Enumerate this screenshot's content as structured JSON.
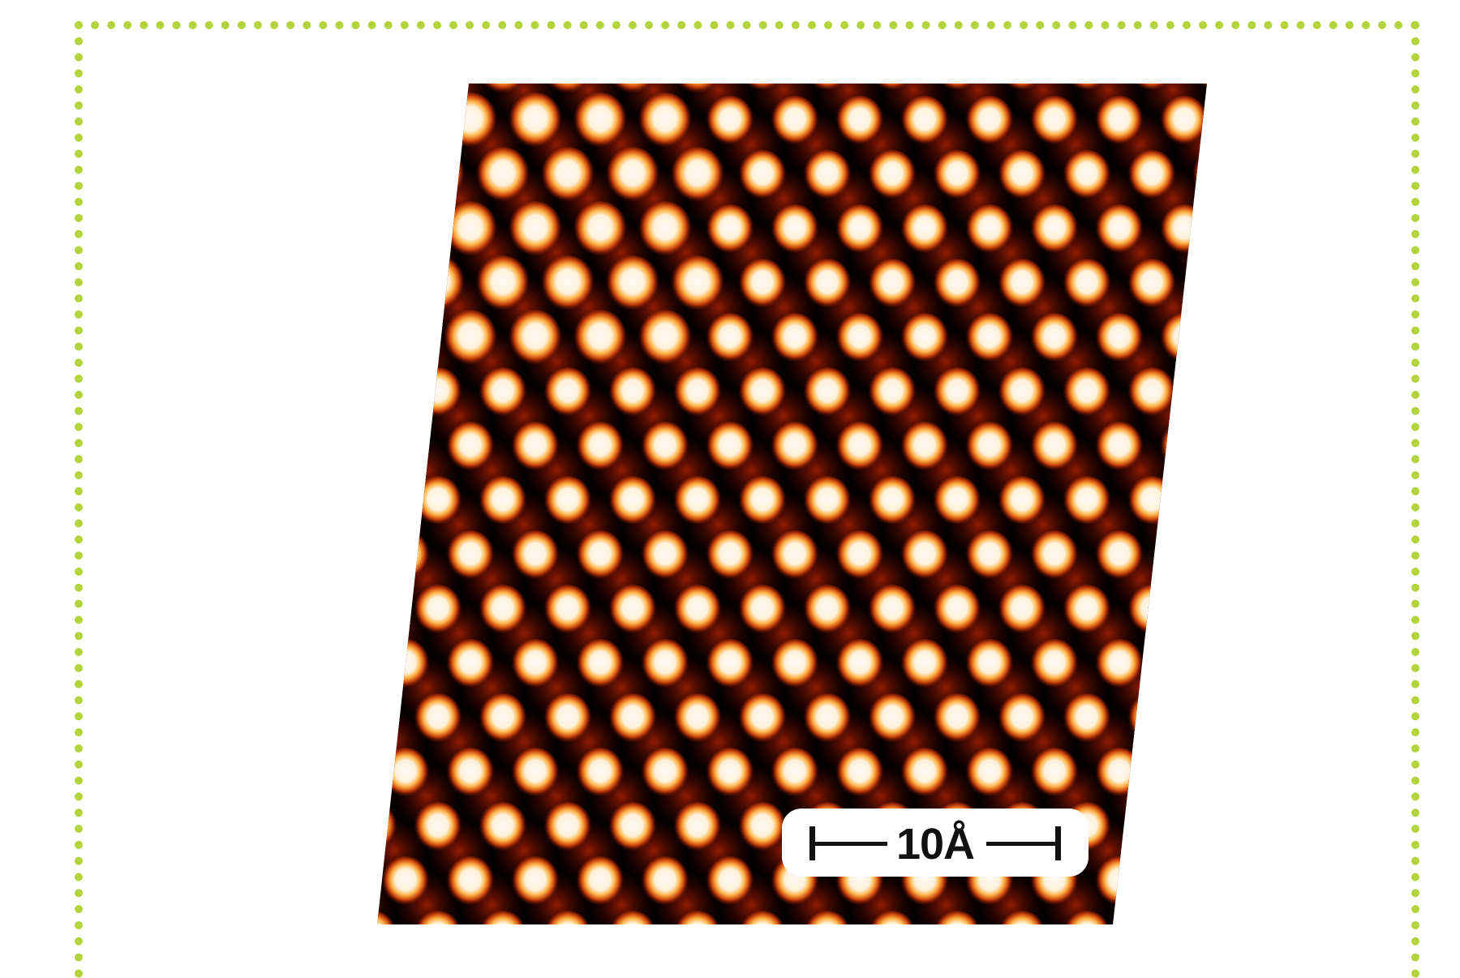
{
  "image": {
    "subject": "atomic-lattice-micrograph",
    "colormap": [
      "#000000",
      "#7a0a00",
      "#d0450a",
      "#ffb040",
      "#fff8ee"
    ],
    "frame_color": "#b5d33d"
  },
  "scale_bar": {
    "label": "10Å"
  }
}
